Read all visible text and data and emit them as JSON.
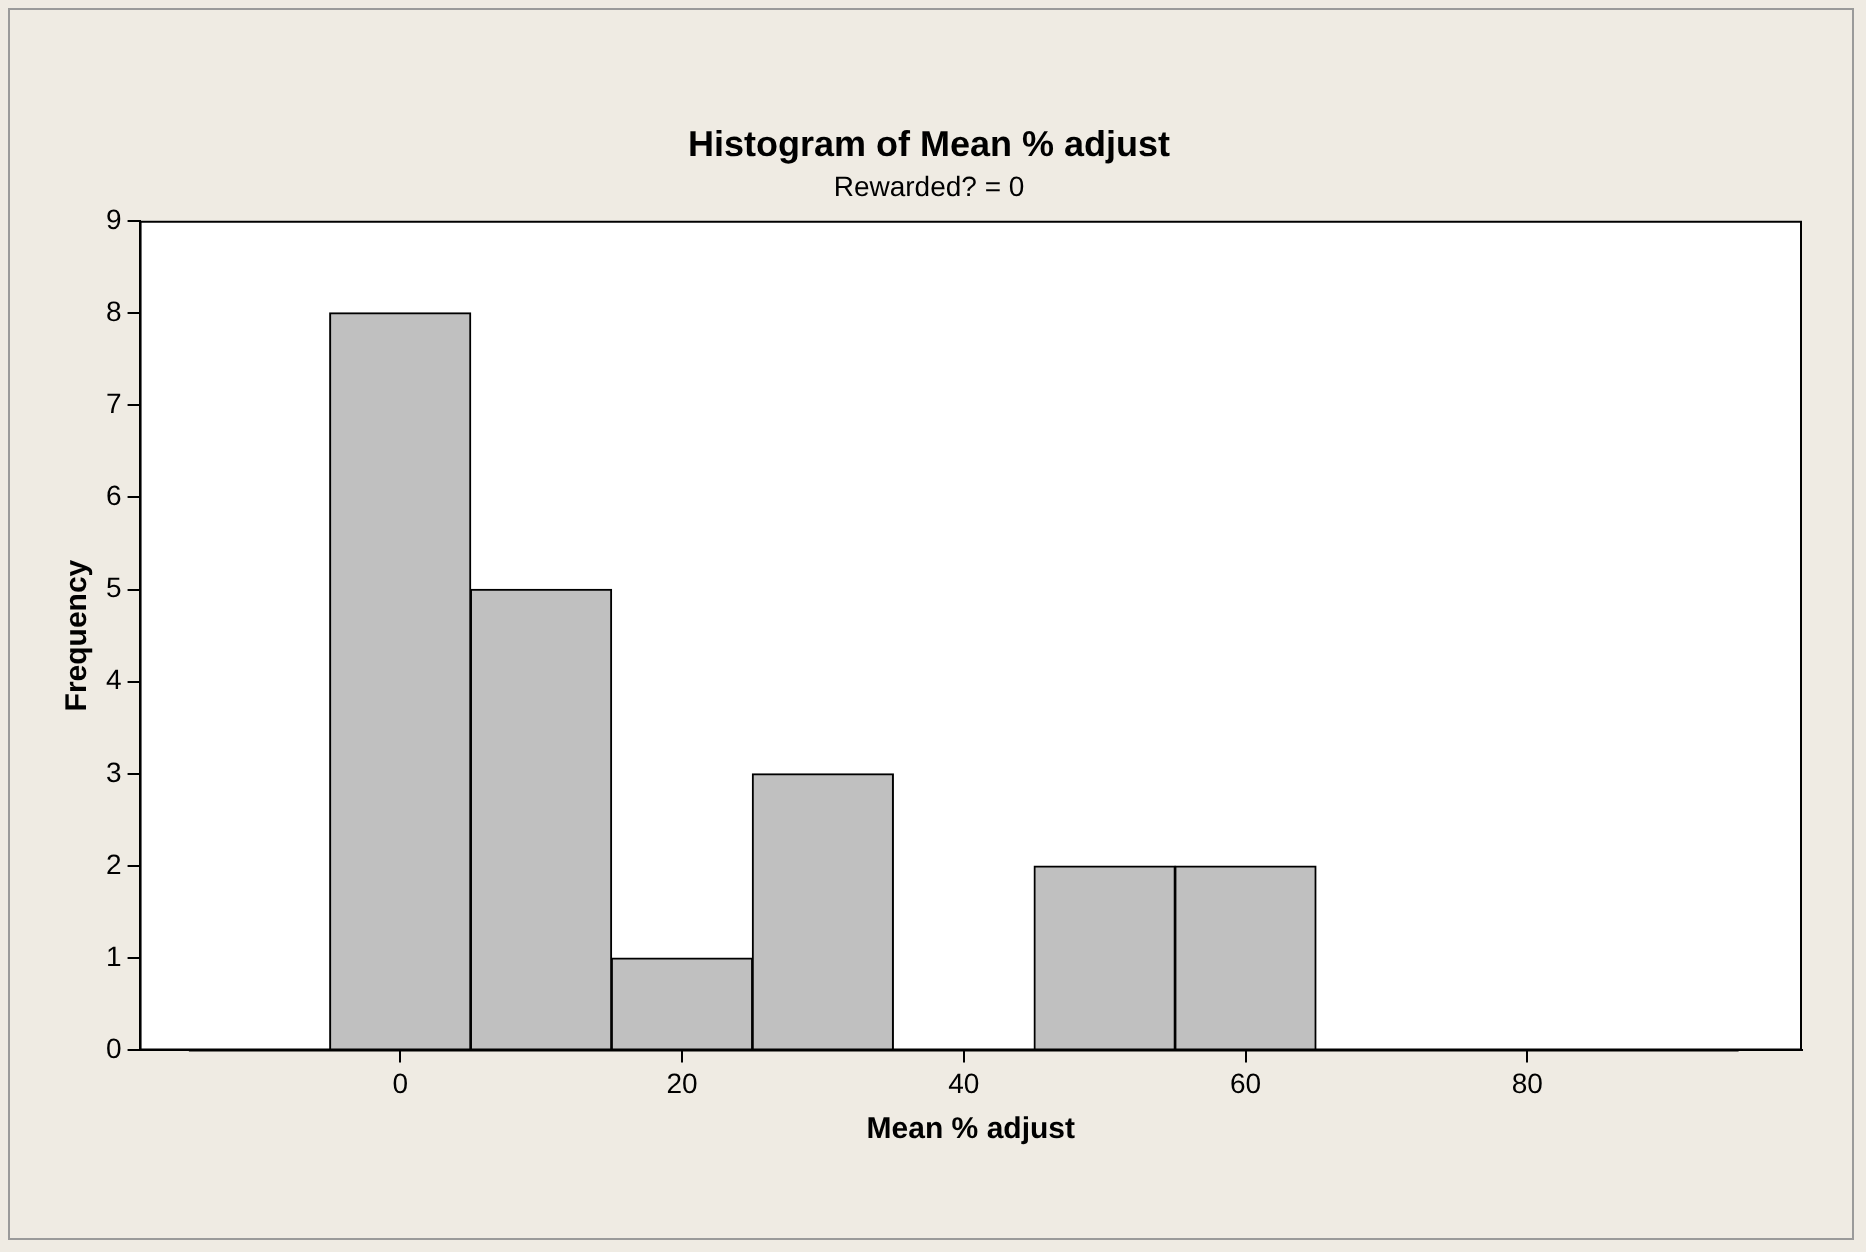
{
  "chart_data": {
    "type": "histogram",
    "title": "Histogram of Mean % adjust",
    "subtitle": "Rewarded? = 0",
    "xlabel": "Mean % adjust",
    "ylabel": "Frequency",
    "bins": [
      -15,
      -5,
      5,
      15,
      25,
      35,
      45,
      55,
      65,
      75,
      85,
      95
    ],
    "values": [
      0,
      8,
      5,
      1,
      3,
      0,
      2,
      2,
      0,
      0,
      0
    ],
    "color": "#c0c0c0",
    "xlim": [
      -18.5,
      99.5
    ],
    "xticks": [
      0,
      20,
      40,
      60,
      80
    ],
    "ylim": [
      0,
      9
    ],
    "yticks": [
      0,
      1,
      2,
      3,
      4,
      5,
      6,
      7,
      8,
      9
    ],
    "grid": false,
    "legend": false
  }
}
